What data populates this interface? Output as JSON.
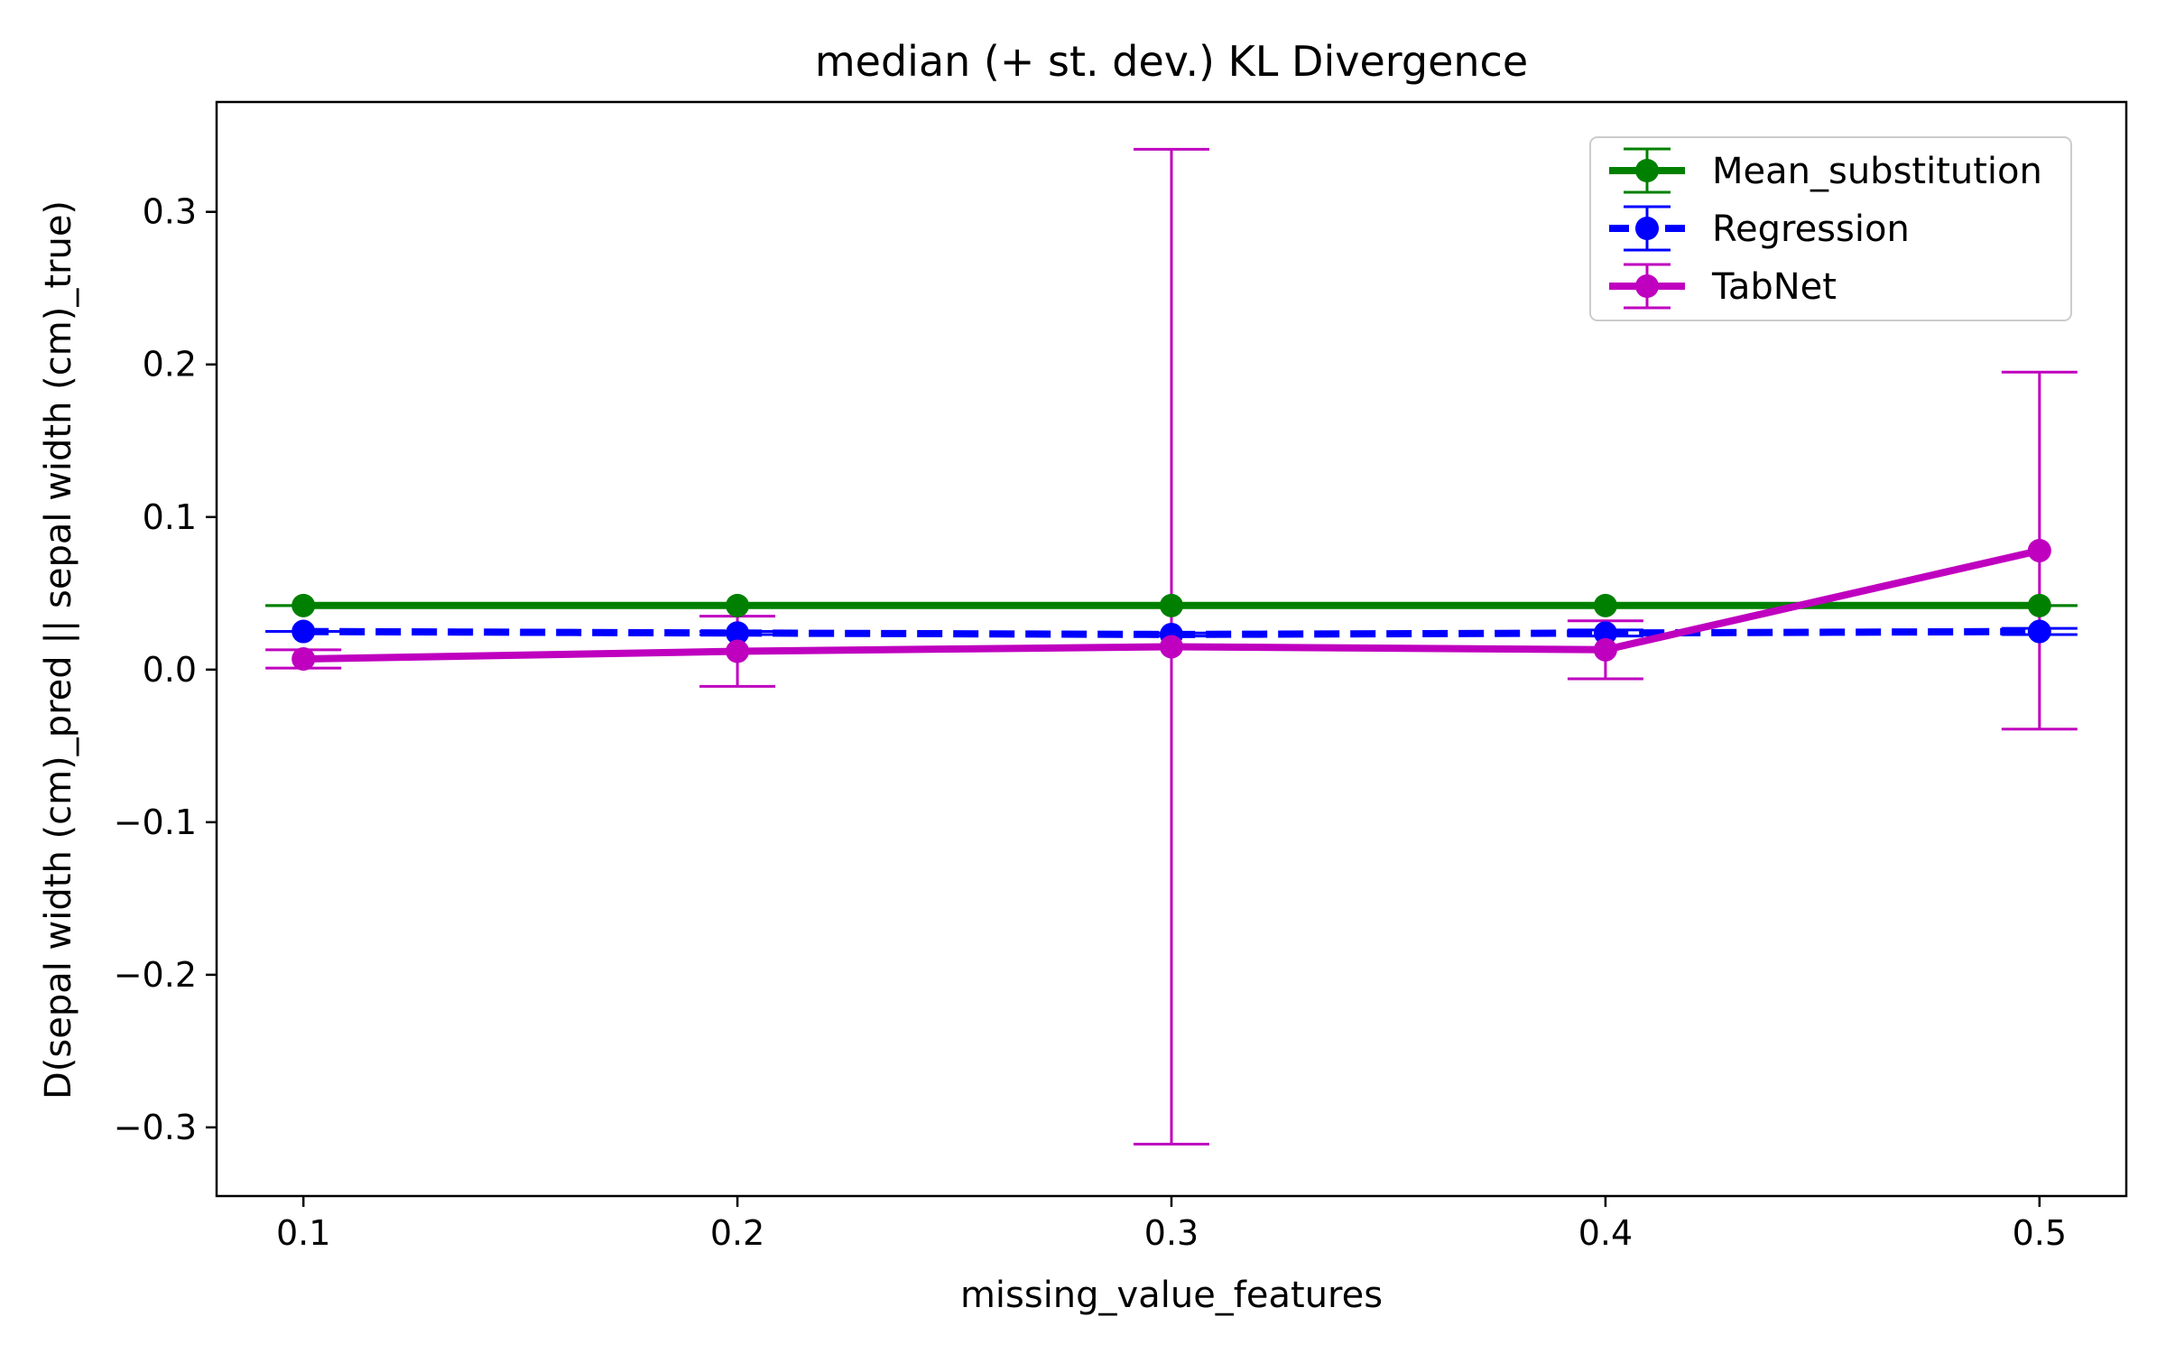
{
  "chart_data": {
    "type": "line",
    "title": "median (+ st. dev.) KL Divergence",
    "xlabel": "missing_value_features",
    "ylabel": "D(sepal width (cm)_pred || sepal width (cm)_true)",
    "x": [
      0.1,
      0.2,
      0.3,
      0.4,
      0.5
    ],
    "xlim": [
      0.08,
      0.52
    ],
    "ylim": [
      -0.345,
      0.372
    ],
    "x_ticks": [
      0.1,
      0.2,
      0.3,
      0.4,
      0.5
    ],
    "x_tick_labels": [
      "0.1",
      "0.2",
      "0.3",
      "0.4",
      "0.5"
    ],
    "y_ticks": [
      -0.3,
      -0.2,
      -0.1,
      0.0,
      0.1,
      0.2,
      0.3
    ],
    "y_tick_labels": [
      "−0.3",
      "−0.2",
      "−0.1",
      "0.0",
      "0.1",
      "0.2",
      "0.3"
    ],
    "grid": false,
    "legend_position": "top-right",
    "series": [
      {
        "name": "Mean_substitution",
        "color": "#008000",
        "linestyle": "solid",
        "values": [
          0.042,
          0.042,
          0.042,
          0.042,
          0.042
        ],
        "errors": [
          0.0,
          0.0,
          0.0,
          0.0,
          0.0
        ]
      },
      {
        "name": "Regression",
        "color": "#0000ff",
        "linestyle": "dashed",
        "values": [
          0.025,
          0.024,
          0.023,
          0.024,
          0.025
        ],
        "errors": [
          0.0,
          0.001,
          0.001,
          0.002,
          0.002
        ]
      },
      {
        "name": "TabNet",
        "color": "#bf00bf",
        "linestyle": "solid",
        "values": [
          0.007,
          0.012,
          0.015,
          0.013,
          0.078
        ],
        "errors": [
          0.006,
          0.023,
          0.326,
          0.019,
          0.117
        ]
      }
    ]
  }
}
